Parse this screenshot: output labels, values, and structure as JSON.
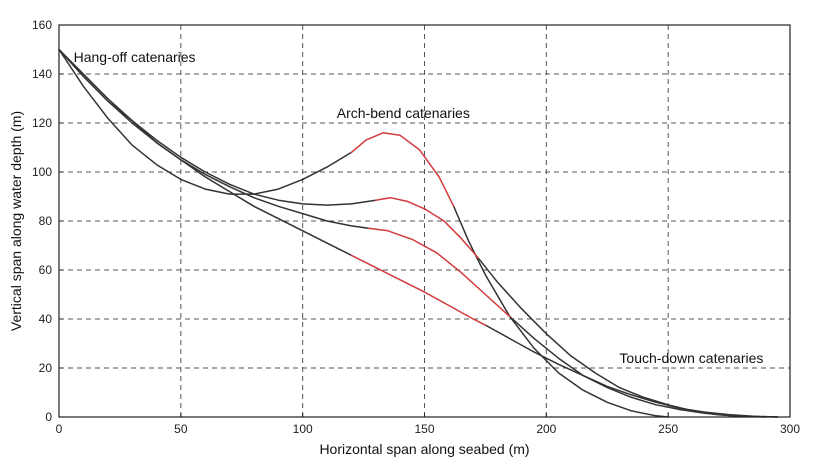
{
  "chart_data": {
    "type": "line",
    "title": "",
    "xlabel": "Horizontal span along seabed (m)",
    "ylabel": "Vertical span along water depth (m)",
    "xlim": [
      0,
      300
    ],
    "ylim": [
      0,
      160
    ],
    "xticks": [
      0,
      50,
      100,
      150,
      200,
      250,
      300
    ],
    "yticks": [
      0,
      20,
      40,
      60,
      80,
      100,
      120,
      140,
      160
    ],
    "grid": true,
    "legend": "none",
    "colors": {
      "catenary": "#333333",
      "arch": "#d23a3a"
    },
    "annotations": [
      {
        "text": "Hang-off catenaries",
        "x": 6,
        "y": 145
      },
      {
        "text": "Arch-bend catenaries",
        "x": 114,
        "y": 122
      },
      {
        "text": "Touch-down catenaries",
        "x": 230,
        "y": 22
      }
    ],
    "series": [
      {
        "hang": [
          [
            0,
            150
          ],
          [
            10,
            135
          ],
          [
            20,
            122
          ],
          [
            30,
            111
          ],
          [
            40,
            103
          ],
          [
            50,
            97
          ],
          [
            60,
            93
          ],
          [
            70,
            91
          ],
          [
            80,
            91
          ],
          [
            90,
            93
          ],
          [
            100,
            97
          ],
          [
            110,
            102
          ],
          [
            120,
            108
          ]
        ],
        "arch": [
          [
            120,
            108
          ],
          [
            126,
            113
          ],
          [
            133,
            116
          ],
          [
            140,
            115
          ],
          [
            148,
            109
          ],
          [
            156,
            98
          ],
          [
            162,
            86
          ]
        ],
        "touch": [
          [
            162,
            86
          ],
          [
            168,
            72
          ],
          [
            175,
            58
          ],
          [
            185,
            41
          ],
          [
            195,
            28
          ],
          [
            205,
            18
          ],
          [
            215,
            11
          ],
          [
            225,
            6
          ],
          [
            235,
            2.5
          ],
          [
            245,
            0.5
          ],
          [
            250,
            0
          ]
        ]
      },
      {
        "hang": [
          [
            0,
            150
          ],
          [
            10,
            139
          ],
          [
            20,
            129
          ],
          [
            30,
            121
          ],
          [
            40,
            113
          ],
          [
            50,
            106
          ],
          [
            60,
            100
          ],
          [
            70,
            95
          ],
          [
            80,
            91
          ],
          [
            90,
            88.5
          ],
          [
            100,
            87
          ],
          [
            110,
            86.5
          ],
          [
            120,
            87
          ],
          [
            130,
            88.5
          ]
        ],
        "arch": [
          [
            130,
            88.5
          ],
          [
            136,
            89.5
          ],
          [
            143,
            88
          ],
          [
            150,
            85
          ],
          [
            158,
            80
          ],
          [
            165,
            73
          ],
          [
            172,
            65
          ]
        ],
        "touch": [
          [
            172,
            65
          ],
          [
            180,
            55
          ],
          [
            190,
            44
          ],
          [
            200,
            34
          ],
          [
            210,
            25
          ],
          [
            220,
            18
          ],
          [
            230,
            12
          ],
          [
            240,
            8
          ],
          [
            250,
            5
          ],
          [
            260,
            2.5
          ],
          [
            270,
            1
          ],
          [
            280,
            0.3
          ],
          [
            290,
            0
          ]
        ]
      },
      {
        "hang": [
          [
            0,
            150
          ],
          [
            10,
            140
          ],
          [
            20,
            130
          ],
          [
            30,
            121
          ],
          [
            40,
            112
          ],
          [
            50,
            105
          ],
          [
            60,
            99
          ],
          [
            70,
            94
          ],
          [
            80,
            89.5
          ],
          [
            90,
            86
          ],
          [
            100,
            83
          ],
          [
            110,
            80
          ],
          [
            120,
            78
          ],
          [
            127,
            77
          ]
        ],
        "arch": [
          [
            127,
            77
          ],
          [
            135,
            76
          ],
          [
            145,
            72.5
          ],
          [
            155,
            67
          ],
          [
            165,
            59
          ],
          [
            175,
            50
          ],
          [
            185,
            41
          ]
        ],
        "touch": [
          [
            185,
            41
          ],
          [
            195,
            32
          ],
          [
            205,
            24
          ],
          [
            215,
            17
          ],
          [
            225,
            12
          ],
          [
            235,
            8
          ],
          [
            245,
            5
          ],
          [
            255,
            3
          ],
          [
            265,
            1.5
          ],
          [
            275,
            0.6
          ],
          [
            285,
            0.2
          ],
          [
            295,
            0
          ]
        ]
      },
      {
        "hang": [
          [
            0,
            150
          ],
          [
            10,
            139
          ],
          [
            20,
            129
          ],
          [
            30,
            120
          ],
          [
            40,
            112
          ],
          [
            50,
            105
          ],
          [
            60,
            98
          ],
          [
            70,
            92
          ],
          [
            80,
            86
          ],
          [
            90,
            81
          ],
          [
            100,
            76
          ],
          [
            110,
            71
          ],
          [
            120,
            66
          ]
        ],
        "arch": [
          [
            120,
            66
          ],
          [
            130,
            61
          ],
          [
            140,
            56
          ],
          [
            150,
            51
          ],
          [
            160,
            45.5
          ],
          [
            170,
            40
          ],
          [
            175,
            37.5
          ]
        ],
        "touch": [
          [
            175,
            37.5
          ],
          [
            185,
            32
          ],
          [
            195,
            26.5
          ],
          [
            205,
            21.5
          ],
          [
            215,
            17
          ],
          [
            225,
            12.5
          ],
          [
            235,
            9
          ],
          [
            245,
            6
          ],
          [
            255,
            3.5
          ],
          [
            265,
            2
          ],
          [
            275,
            1
          ],
          [
            285,
            0.3
          ],
          [
            295,
            0
          ]
        ]
      }
    ]
  }
}
